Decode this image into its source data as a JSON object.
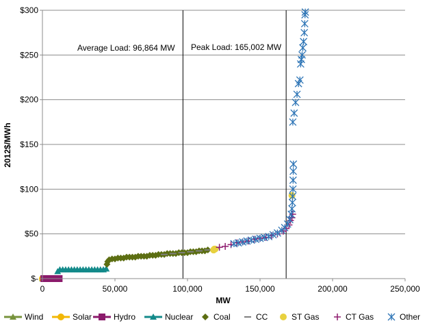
{
  "chart_data": {
    "type": "scatter",
    "title": "",
    "xlabel": "MW",
    "ylabel": "2012$/MWh",
    "xlim": [
      0,
      250000
    ],
    "ylim": [
      0,
      300
    ],
    "x_ticks": [
      0,
      50000,
      100000,
      150000,
      200000,
      250000
    ],
    "x_tick_labels": [
      "0",
      "50,000",
      "100,000",
      "150,000",
      "200,000",
      "250,000"
    ],
    "y_ticks": [
      0,
      50,
      100,
      150,
      200,
      250,
      300
    ],
    "y_tick_labels": [
      "$-",
      "$50",
      "$100",
      "$150",
      "$200",
      "$250",
      "$300"
    ],
    "grid": "horizontal",
    "legend_position": "bottom",
    "annotations": [
      {
        "text": "Average Load: 96,864 MW",
        "x": 96864
      },
      {
        "text": "Peak Load: 165,002 MW",
        "x": 168000
      }
    ],
    "series": [
      {
        "name": "Wind",
        "color": "#77933C",
        "marker": "triangle",
        "line": true,
        "points": [
          [
            0,
            0
          ],
          [
            1000,
            0
          ],
          [
            2000,
            0
          ],
          [
            3000,
            0
          ]
        ]
      },
      {
        "name": "Solar",
        "color": "#F2B705",
        "marker": "circle",
        "line": true,
        "points": [
          [
            0,
            0
          ],
          [
            500,
            0
          ],
          [
            1000,
            0
          ]
        ]
      },
      {
        "name": "Hydro",
        "color": "#8B1A6B",
        "marker": "square",
        "line": true,
        "points": [
          [
            1000,
            0
          ],
          [
            2500,
            0
          ],
          [
            4000,
            0
          ],
          [
            5500,
            0
          ],
          [
            7000,
            0
          ],
          [
            8500,
            0
          ],
          [
            10000,
            0
          ],
          [
            11500,
            0
          ]
        ]
      },
      {
        "name": "Nuclear",
        "color": "#138A8A",
        "marker": "triangle",
        "line": true,
        "points": [
          [
            10500,
            8
          ],
          [
            12000,
            10
          ],
          [
            14000,
            10
          ],
          [
            16000,
            10
          ],
          [
            18000,
            10
          ],
          [
            20000,
            10
          ],
          [
            22000,
            10
          ],
          [
            24000,
            10
          ],
          [
            26000,
            10
          ],
          [
            28000,
            10
          ],
          [
            30000,
            10
          ],
          [
            32000,
            10
          ],
          [
            34000,
            10
          ],
          [
            36000,
            10
          ],
          [
            38000,
            10
          ],
          [
            40000,
            10
          ],
          [
            42000,
            10
          ],
          [
            44000,
            11
          ]
        ]
      },
      {
        "name": "Coal",
        "color": "#5C6E12",
        "marker": "diamond",
        "line": false,
        "points": [
          [
            44500,
            16
          ],
          [
            45000,
            19
          ],
          [
            46000,
            21
          ],
          [
            48000,
            22
          ],
          [
            50000,
            22
          ],
          [
            52000,
            23
          ],
          [
            54000,
            23
          ],
          [
            56000,
            23
          ],
          [
            58000,
            24
          ],
          [
            60000,
            24
          ],
          [
            62000,
            24
          ],
          [
            64000,
            24
          ],
          [
            66000,
            25
          ],
          [
            68000,
            25
          ],
          [
            70000,
            25
          ],
          [
            72000,
            25
          ],
          [
            74000,
            26
          ],
          [
            76000,
            26
          ],
          [
            78000,
            26
          ],
          [
            80000,
            27
          ],
          [
            82000,
            27
          ],
          [
            84000,
            27
          ],
          [
            86000,
            28
          ],
          [
            88000,
            28
          ],
          [
            90000,
            28
          ],
          [
            92000,
            28
          ],
          [
            94000,
            29
          ],
          [
            96000,
            29
          ],
          [
            98000,
            29
          ],
          [
            100000,
            29
          ],
          [
            102000,
            30
          ],
          [
            104000,
            30
          ],
          [
            106000,
            30
          ],
          [
            108000,
            31
          ],
          [
            110000,
            31
          ],
          [
            112000,
            31
          ],
          [
            114000,
            32
          ]
        ]
      },
      {
        "name": "CC",
        "color": "#7F7F7F",
        "marker": "dash",
        "line": false,
        "points": [
          [
            84000,
            27
          ],
          [
            90000,
            28
          ],
          [
            96000,
            29
          ],
          [
            102000,
            30
          ],
          [
            108000,
            31
          ],
          [
            114000,
            32
          ],
          [
            120000,
            34
          ]
        ]
      },
      {
        "name": "ST Gas",
        "color": "#E8D13F",
        "marker": "circle",
        "line": false,
        "points": [
          [
            118000,
            32
          ],
          [
            118500,
            33
          ],
          [
            119000,
            33
          ],
          [
            172000,
            93
          ]
        ]
      },
      {
        "name": "CT Gas",
        "color": "#8E1B6E",
        "marker": "plus",
        "line": false,
        "points": [
          [
            122000,
            35
          ],
          [
            126000,
            36
          ],
          [
            130000,
            38
          ],
          [
            134000,
            40
          ],
          [
            138000,
            41
          ],
          [
            142000,
            42
          ],
          [
            146000,
            44
          ],
          [
            150000,
            45
          ],
          [
            154000,
            46
          ],
          [
            158000,
            48
          ],
          [
            162000,
            50
          ],
          [
            166000,
            53
          ],
          [
            168000,
            56
          ],
          [
            170000,
            60
          ],
          [
            171000,
            65
          ],
          [
            172000,
            68
          ],
          [
            172500,
            72
          ]
        ]
      },
      {
        "name": "Other",
        "color": "#2E75B6",
        "marker": "asterisk",
        "line": false,
        "points": [
          [
            132000,
            39
          ],
          [
            135000,
            40
          ],
          [
            138000,
            41
          ],
          [
            141000,
            42
          ],
          [
            144000,
            43
          ],
          [
            147000,
            44
          ],
          [
            150000,
            45
          ],
          [
            153000,
            46
          ],
          [
            156000,
            47
          ],
          [
            159000,
            49
          ],
          [
            162000,
            51
          ],
          [
            165000,
            54
          ],
          [
            167000,
            57
          ],
          [
            169000,
            61
          ],
          [
            170500,
            66
          ],
          [
            171500,
            72
          ],
          [
            172000,
            78
          ],
          [
            172300,
            85
          ],
          [
            172500,
            92
          ],
          [
            172700,
            100
          ],
          [
            172800,
            110
          ],
          [
            172900,
            120
          ],
          [
            173000,
            128
          ],
          [
            172600,
            175
          ],
          [
            173500,
            185
          ],
          [
            174500,
            197
          ],
          [
            175500,
            206
          ],
          [
            176500,
            218
          ],
          [
            177500,
            222
          ],
          [
            178000,
            240
          ],
          [
            178500,
            245
          ],
          [
            179000,
            250
          ],
          [
            179500,
            258
          ],
          [
            180000,
            265
          ],
          [
            180500,
            275
          ],
          [
            180800,
            285
          ],
          [
            181000,
            295
          ],
          [
            181200,
            298
          ]
        ]
      }
    ]
  }
}
